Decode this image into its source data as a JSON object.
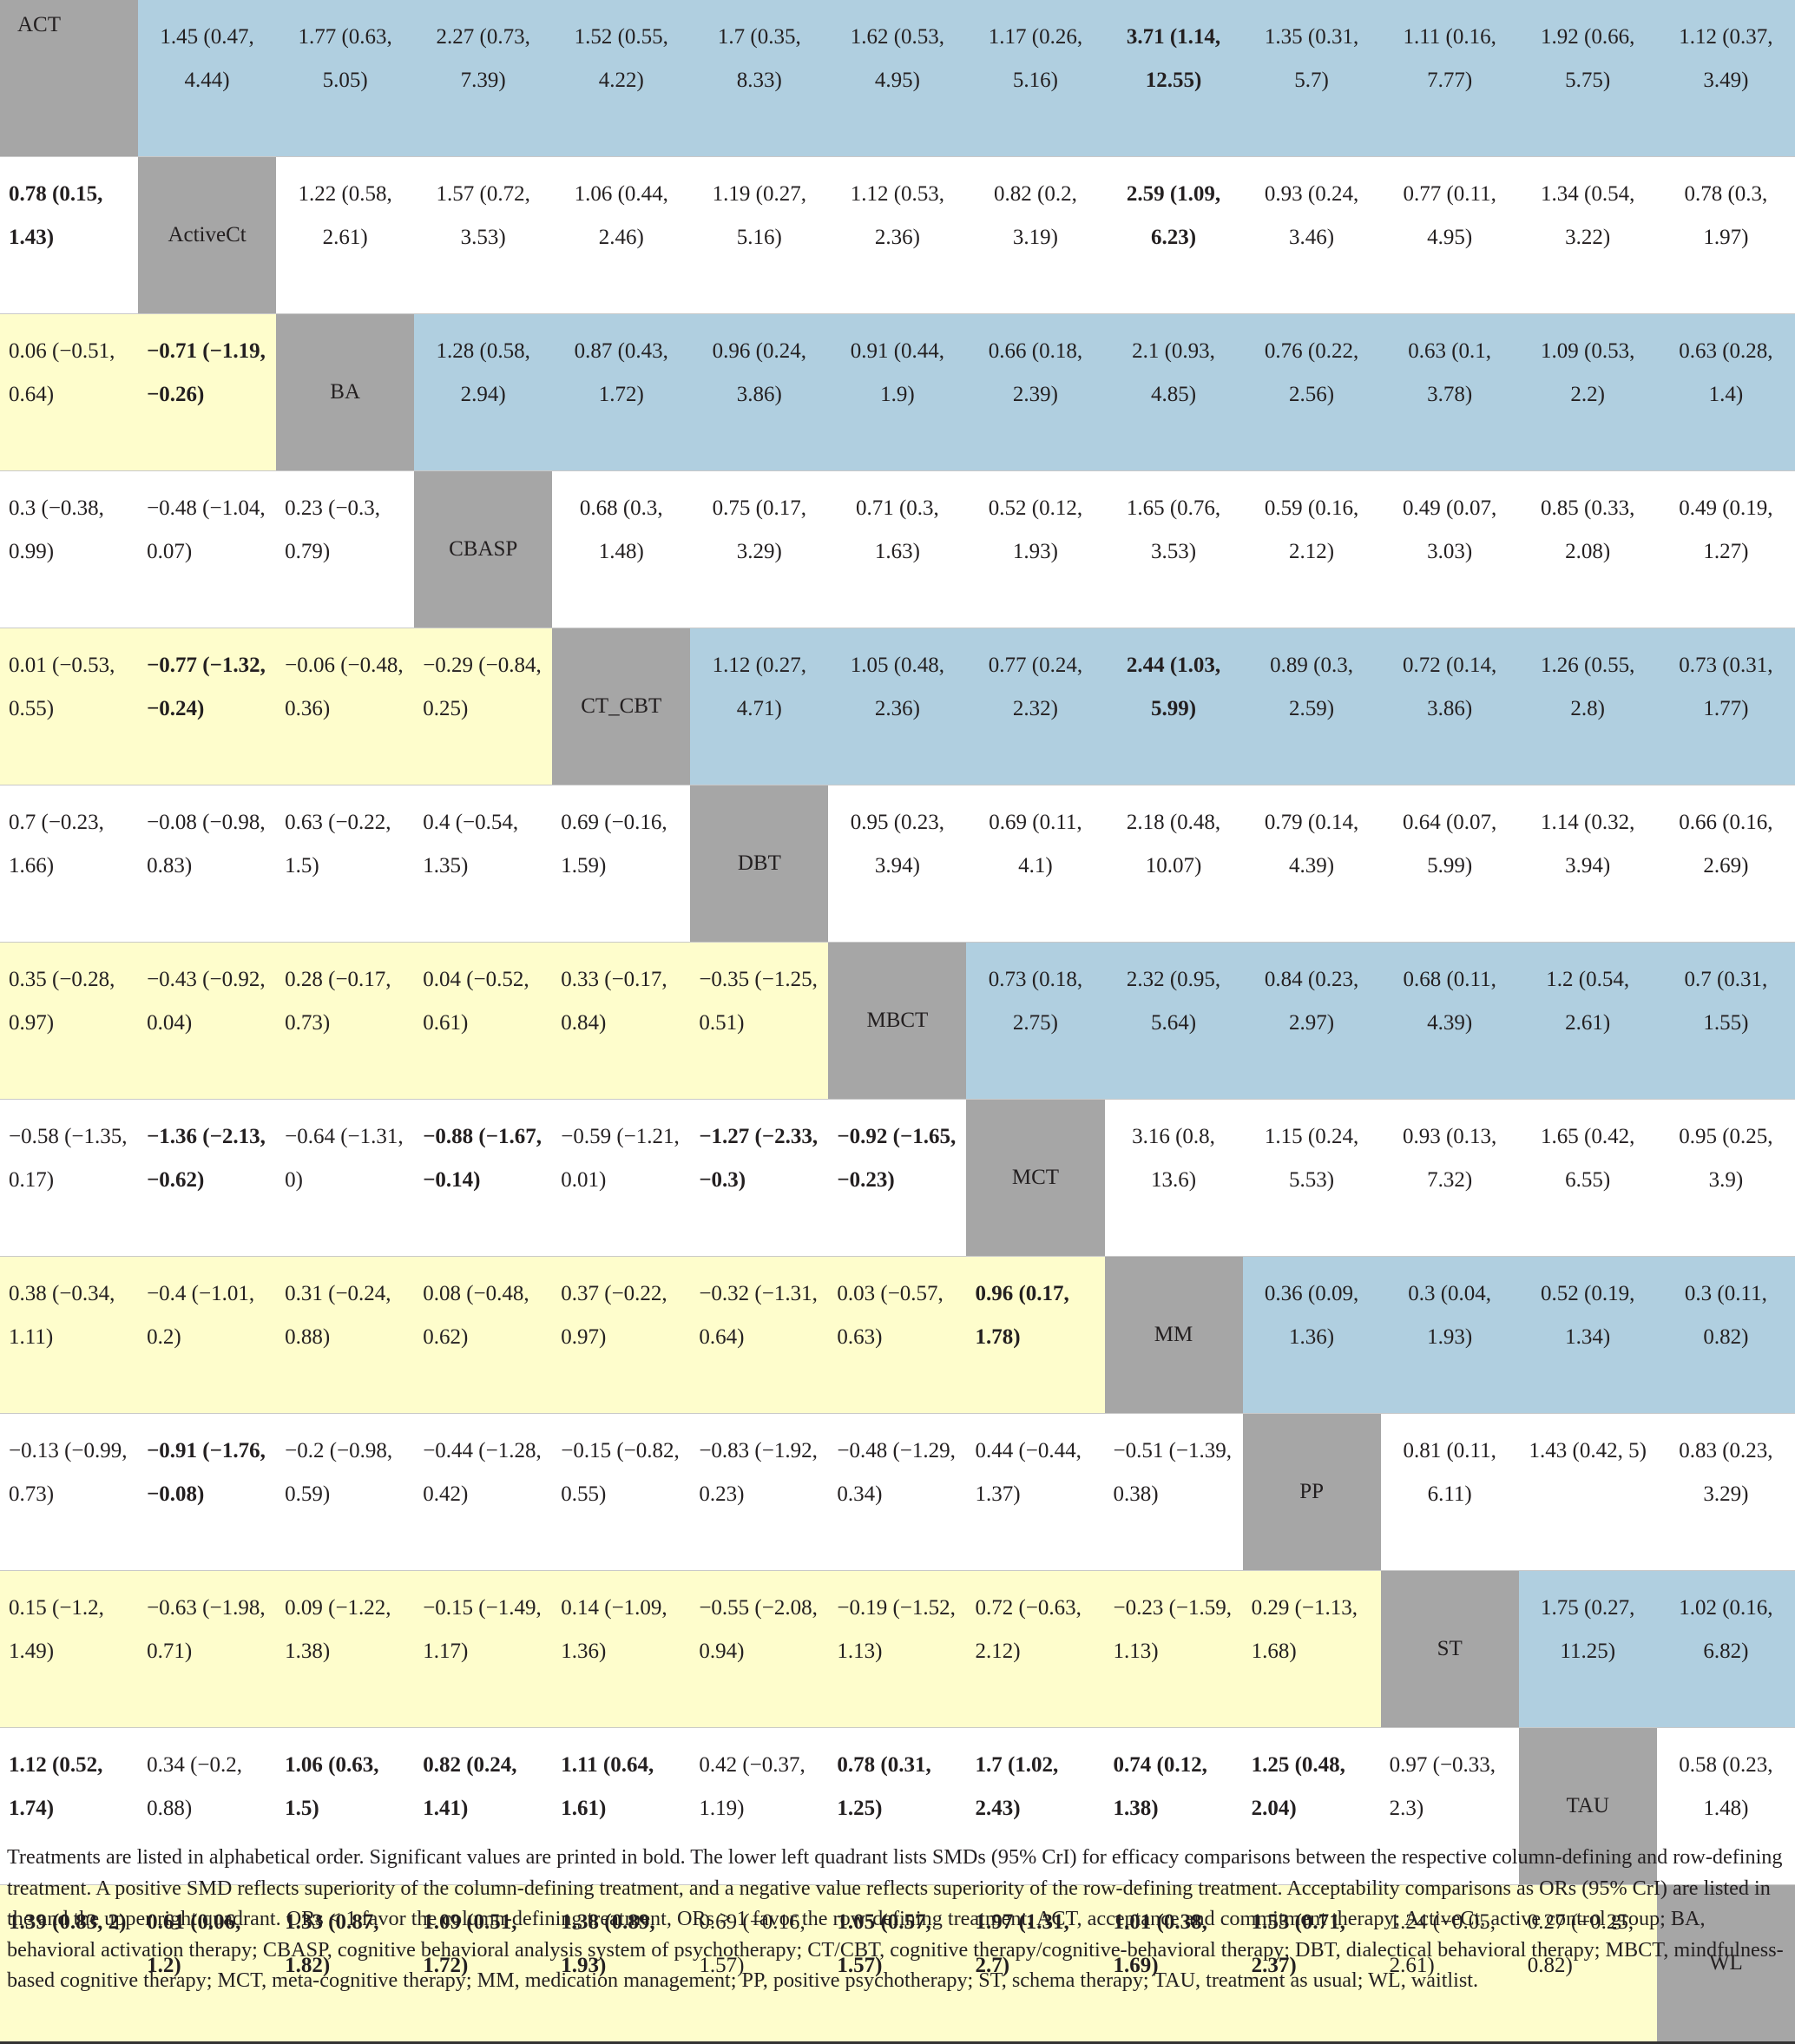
{
  "treatments": [
    "ACT",
    "ActiveCt",
    "BA",
    "CBASP",
    "CT_CBT",
    "DBT",
    "MBCT",
    "MCT",
    "MM",
    "PP",
    "ST",
    "TAU",
    "WL"
  ],
  "rows": [
    [
      {
        "text": "ACT"
      },
      {
        "text": "1.45 (0.47, 4.44)"
      },
      {
        "text": "1.77 (0.63, 5.05)"
      },
      {
        "text": "2.27 (0.73, 7.39)"
      },
      {
        "text": "1.52 (0.55, 4.22)"
      },
      {
        "text": "1.7 (0.35, 8.33)"
      },
      {
        "text": "1.62 (0.53, 4.95)"
      },
      {
        "text": "1.17 (0.26, 5.16)"
      },
      {
        "text": "3.71 (1.14, 12.55)",
        "bold": true
      },
      {
        "text": "1.35 (0.31, 5.7)"
      },
      {
        "text": "1.11 (0.16, 7.77)"
      },
      {
        "text": "1.92 (0.66, 5.75)"
      },
      {
        "text": "1.12 (0.37, 3.49)"
      }
    ],
    [
      {
        "text": "0.78 (0.15, 1.43)",
        "bold": true
      },
      {
        "text": "ActiveCt"
      },
      {
        "text": "1.22 (0.58, 2.61)"
      },
      {
        "text": "1.57 (0.72, 3.53)"
      },
      {
        "text": "1.06 (0.44, 2.46)"
      },
      {
        "text": "1.19 (0.27, 5.16)"
      },
      {
        "text": "1.12 (0.53, 2.36)"
      },
      {
        "text": "0.82 (0.2, 3.19)"
      },
      {
        "text": "2.59 (1.09, 6.23)",
        "bold": true
      },
      {
        "text": "0.93 (0.24, 3.46)"
      },
      {
        "text": "0.77 (0.11, 4.95)"
      },
      {
        "text": "1.34 (0.54, 3.22)"
      },
      {
        "text": "0.78 (0.3, 1.97)"
      }
    ],
    [
      {
        "text": "0.06 (−0.51, 0.64)"
      },
      {
        "text": "−0.71 (−1.19, −0.26)",
        "bold": true
      },
      {
        "text": "BA"
      },
      {
        "text": "1.28 (0.58, 2.94)"
      },
      {
        "text": "0.87 (0.43, 1.72)"
      },
      {
        "text": "0.96 (0.24, 3.86)"
      },
      {
        "text": "0.91 (0.44, 1.9)"
      },
      {
        "text": "0.66 (0.18, 2.39)"
      },
      {
        "text": "2.1 (0.93, 4.85)"
      },
      {
        "text": "0.76 (0.22, 2.56)"
      },
      {
        "text": "0.63 (0.1, 3.78)"
      },
      {
        "text": "1.09 (0.53, 2.2)"
      },
      {
        "text": "0.63 (0.28, 1.4)"
      }
    ],
    [
      {
        "text": "0.3 (−0.38, 0.99)"
      },
      {
        "text": "−0.48 (−1.04, 0.07)"
      },
      {
        "text": "0.23 (−0.3, 0.79)"
      },
      {
        "text": "CBASP"
      },
      {
        "text": "0.68 (0.3, 1.48)"
      },
      {
        "text": "0.75 (0.17, 3.29)"
      },
      {
        "text": "0.71 (0.3, 1.63)"
      },
      {
        "text": "0.52 (0.12, 1.93)"
      },
      {
        "text": "1.65 (0.76, 3.53)"
      },
      {
        "text": "0.59 (0.16, 2.12)"
      },
      {
        "text": "0.49 (0.07, 3.03)"
      },
      {
        "text": "0.85 (0.33, 2.08)"
      },
      {
        "text": "0.49 (0.19, 1.27)"
      }
    ],
    [
      {
        "text": "0.01 (−0.53, 0.55)"
      },
      {
        "text": "−0.77 (−1.32, −0.24)",
        "bold": true
      },
      {
        "text": "−0.06 (−0.48, 0.36)"
      },
      {
        "text": "−0.29 (−0.84, 0.25)"
      },
      {
        "text": "CT_CBT"
      },
      {
        "text": "1.12 (0.27, 4.71)"
      },
      {
        "text": "1.05 (0.48, 2.36)"
      },
      {
        "text": "0.77 (0.24, 2.32)"
      },
      {
        "text": "2.44 (1.03, 5.99)",
        "bold": true
      },
      {
        "text": "0.89 (0.3, 2.59)"
      },
      {
        "text": "0.72 (0.14, 3.86)"
      },
      {
        "text": "1.26 (0.55, 2.8)"
      },
      {
        "text": "0.73 (0.31, 1.77)"
      }
    ],
    [
      {
        "text": "0.7 (−0.23, 1.66)"
      },
      {
        "text": "−0.08 (−0.98, 0.83)"
      },
      {
        "text": "0.63 (−0.22, 1.5)"
      },
      {
        "text": "0.4 (−0.54, 1.35)"
      },
      {
        "text": "0.69 (−0.16, 1.59)"
      },
      {
        "text": "DBT"
      },
      {
        "text": "0.95 (0.23, 3.94)"
      },
      {
        "text": "0.69 (0.11, 4.1)"
      },
      {
        "text": "2.18 (0.48, 10.07)"
      },
      {
        "text": "0.79 (0.14, 4.39)"
      },
      {
        "text": "0.64 (0.07, 5.99)"
      },
      {
        "text": "1.14 (0.32, 3.94)"
      },
      {
        "text": "0.66 (0.16, 2.69)"
      }
    ],
    [
      {
        "text": "0.35 (−0.28, 0.97)"
      },
      {
        "text": "−0.43 (−0.92, 0.04)"
      },
      {
        "text": "0.28 (−0.17, 0.73)"
      },
      {
        "text": "0.04 (−0.52, 0.61)"
      },
      {
        "text": "0.33 (−0.17, 0.84)"
      },
      {
        "text": "−0.35 (−1.25, 0.51)"
      },
      {
        "text": "MBCT"
      },
      {
        "text": "0.73 (0.18, 2.75)"
      },
      {
        "text": "2.32 (0.95, 5.64)"
      },
      {
        "text": "0.84 (0.23, 2.97)"
      },
      {
        "text": "0.68 (0.11, 4.39)"
      },
      {
        "text": "1.2 (0.54, 2.61)"
      },
      {
        "text": "0.7 (0.31, 1.55)"
      }
    ],
    [
      {
        "text": "−0.58 (−1.35, 0.17)"
      },
      {
        "text": "−1.36 (−2.13, −0.62)",
        "bold": true
      },
      {
        "text": "−0.64 (−1.31, 0)"
      },
      {
        "text": "−0.88 (−1.67, −0.14)",
        "bold": true
      },
      {
        "text": "−0.59 (−1.21, 0.01)"
      },
      {
        "text": "−1.27 (−2.33, −0.3)",
        "bold": true
      },
      {
        "text": "−0.92 (−1.65, −0.23)",
        "bold": true
      },
      {
        "text": "MCT"
      },
      {
        "text": "3.16 (0.8, 13.6)"
      },
      {
        "text": "1.15 (0.24, 5.53)"
      },
      {
        "text": "0.93 (0.13, 7.32)"
      },
      {
        "text": "1.65 (0.42, 6.55)"
      },
      {
        "text": "0.95 (0.25, 3.9)"
      }
    ],
    [
      {
        "text": "0.38 (−0.34, 1.11)"
      },
      {
        "text": "−0.4 (−1.01, 0.2)"
      },
      {
        "text": "0.31 (−0.24, 0.88)"
      },
      {
        "text": "0.08 (−0.48, 0.62)"
      },
      {
        "text": "0.37 (−0.22, 0.97)"
      },
      {
        "text": "−0.32 (−1.31, 0.64)"
      },
      {
        "text": "0.03 (−0.57, 0.63)"
      },
      {
        "text": "0.96 (0.17, 1.78)",
        "bold": true
      },
      {
        "text": "MM"
      },
      {
        "text": "0.36 (0.09, 1.36)"
      },
      {
        "text": "0.3 (0.04, 1.93)"
      },
      {
        "text": "0.52 (0.19, 1.34)"
      },
      {
        "text": "0.3 (0.11, 0.82)"
      }
    ],
    [
      {
        "text": "−0.13 (−0.99, 0.73)"
      },
      {
        "text": "−0.91 (−1.76, −0.08)",
        "bold": true
      },
      {
        "text": "−0.2 (−0.98, 0.59)"
      },
      {
        "text": "−0.44 (−1.28, 0.42)"
      },
      {
        "text": "−0.15 (−0.82, 0.55)"
      },
      {
        "text": "−0.83 (−1.92, 0.23)"
      },
      {
        "text": "−0.48 (−1.29, 0.34)"
      },
      {
        "text": "0.44 (−0.44, 1.37)"
      },
      {
        "text": "−0.51 (−1.39, 0.38)"
      },
      {
        "text": "PP"
      },
      {
        "text": "0.81 (0.11, 6.11)"
      },
      {
        "text": "1.43 (0.42, 5)"
      },
      {
        "text": "0.83 (0.23, 3.29)"
      }
    ],
    [
      {
        "text": "0.15 (−1.2, 1.49)"
      },
      {
        "text": "−0.63 (−1.98, 0.71)"
      },
      {
        "text": "0.09 (−1.22, 1.38)"
      },
      {
        "text": "−0.15 (−1.49, 1.17)"
      },
      {
        "text": "0.14 (−1.09, 1.36)"
      },
      {
        "text": "−0.55 (−2.08, 0.94)"
      },
      {
        "text": "−0.19 (−1.52, 1.13)"
      },
      {
        "text": "0.72 (−0.63, 2.12)"
      },
      {
        "text": "−0.23 (−1.59, 1.13)"
      },
      {
        "text": "0.29 (−1.13, 1.68)"
      },
      {
        "text": "ST"
      },
      {
        "text": "1.75 (0.27, 11.25)"
      },
      {
        "text": "1.02 (0.16, 6.82)"
      }
    ],
    [
      {
        "text": "1.12 (0.52, 1.74)",
        "bold": true
      },
      {
        "text": "0.34 (−0.2, 0.88)"
      },
      {
        "text": "1.06 (0.63, 1.5)",
        "bold": true
      },
      {
        "text": "0.82 (0.24, 1.41)",
        "bold": true
      },
      {
        "text": "1.11 (0.64, 1.61)",
        "bold": true
      },
      {
        "text": "0.42 (−0.37, 1.19)"
      },
      {
        "text": "0.78 (0.31, 1.25)",
        "bold": true
      },
      {
        "text": "1.7 (1.02, 2.43)",
        "bold": true
      },
      {
        "text": "0.74 (0.12, 1.38)",
        "bold": true
      },
      {
        "text": "1.25 (0.48, 2.04)",
        "bold": true
      },
      {
        "text": "0.97 (−0.33, 2.3)"
      },
      {
        "text": "TAU"
      },
      {
        "text": "0.58 (0.23, 1.48)"
      }
    ],
    [
      {
        "text": "1.39 (0.83, 2)",
        "bold": true
      },
      {
        "text": "0.61 (0.06, 1.2)",
        "bold": true
      },
      {
        "text": "1.33 (0.87, 1.82)",
        "bold": true
      },
      {
        "text": "1.09 (0.51, 1.72)",
        "bold": true
      },
      {
        "text": "1.38 (0.89, 1.93)",
        "bold": true
      },
      {
        "text": "0.69 (−0.16, 1.57)"
      },
      {
        "text": "1.05 (0.57, 1.57)",
        "bold": true
      },
      {
        "text": "1.97 (1.31, 2.7)",
        "bold": true
      },
      {
        "text": "1.01 (0.38, 1.69)",
        "bold": true
      },
      {
        "text": "1.53 (0.71, 2.37)",
        "bold": true
      },
      {
        "text": "1.24 (−0.05, 2.61)"
      },
      {
        "text": "0.27 (−0.25, 0.82)"
      },
      {
        "text": "WL"
      }
    ]
  ],
  "footnote": "Treatments are listed in alphabetical order. Significant values are printed in bold. The lower left quadrant lists SMDs (95% CrI) for efficacy comparisons between the respective column-defining and row-defining treatment. A positive SMD reflects superiority of the column-defining treatment, and a negative value reflects superiority of the row-defining treatment. Acceptability comparisons as ORs (95% CrI) are listed in the and the upper right quadrant. ORs < 1 favor the column-defining treatment, ORs > 1 favor the row-defining treatment. ACT, acceptance and commitment therapy; ActiveCt, active control group; BA, behavioral activation therapy; CBASP, cognitive behavioral analysis system of psychotherapy; CT/CBT, cognitive therapy/cognitive-behavioral therapy; DBT, dialectical behavioral therapy; MBCT, mindfulness-based cognitive therapy; MCT, meta-cognitive therapy; MM, medication management; PP, positive psychotherapy; ST, schema therapy; TAU, treatment as usual; WL, waitlist.",
  "colors": {
    "diagonal": "#a6a6a6",
    "upper_shaded": "#b0cfe0",
    "lower_shaded": "#fefdcc",
    "plain": "#ffffff",
    "text": "#231f20"
  }
}
